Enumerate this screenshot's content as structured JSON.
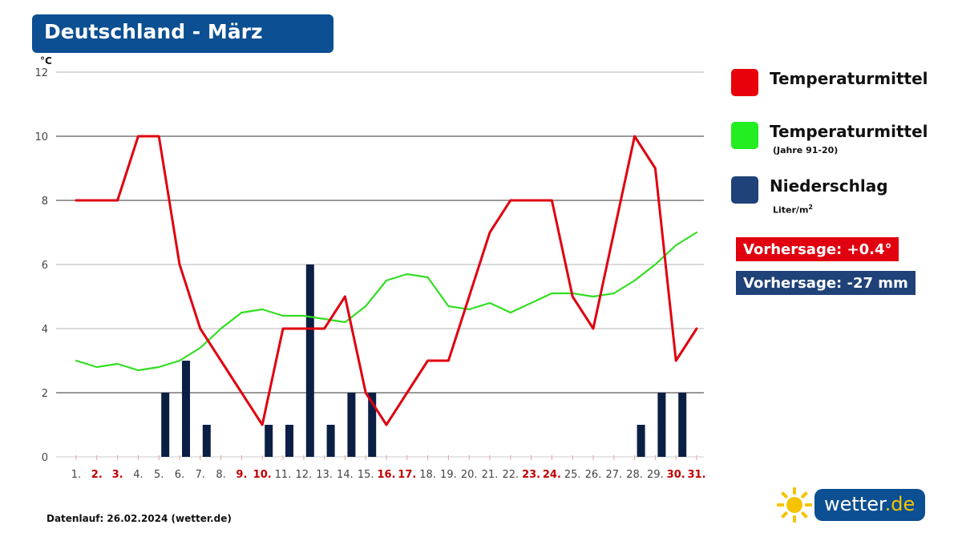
{
  "title": "Deutschland - März",
  "chart_data": {
    "type": "line",
    "yunit": "°C",
    "ylim": [
      0,
      12
    ],
    "yticks": [
      0,
      2,
      4,
      6,
      8,
      10,
      12
    ],
    "grid": true,
    "categories": [
      "1.",
      "2.",
      "3.",
      "4.",
      "5.",
      "6.",
      "7.",
      "8.",
      "9.",
      "10.",
      "11.",
      "12.",
      "13.",
      "14.",
      "15.",
      "16.",
      "17.",
      "18.",
      "19.",
      "20.",
      "21.",
      "22.",
      "23.",
      "24.",
      "25.",
      "26.",
      "27.",
      "28.",
      "29.",
      "30.",
      "31."
    ],
    "weekend_days": [
      2,
      3,
      9,
      10,
      16,
      17,
      23,
      24,
      30,
      31
    ],
    "series": [
      {
        "name": "Temperaturmittel",
        "type": "line",
        "color": "#e0000f",
        "values": [
          8,
          8,
          8,
          10,
          10,
          6,
          4,
          3,
          2,
          1,
          4,
          4,
          4,
          5,
          2,
          1,
          2,
          3,
          3,
          5,
          7,
          8,
          8,
          8,
          5,
          4,
          7,
          10,
          9,
          3,
          4
        ]
      },
      {
        "name": "Temperaturmittel (Jahre 91-20)",
        "type": "line",
        "color": "#33dd22",
        "values": [
          3.0,
          2.8,
          2.9,
          2.7,
          2.8,
          3.0,
          3.4,
          4.0,
          4.5,
          4.6,
          4.4,
          4.4,
          4.3,
          4.2,
          4.7,
          5.5,
          5.7,
          5.6,
          4.7,
          4.6,
          4.8,
          4.5,
          4.8,
          5.1,
          5.1,
          5.0,
          5.1,
          5.5,
          6.0,
          6.6,
          7.0
        ]
      },
      {
        "name": "Niederschlag",
        "type": "bar",
        "color": "#0b1f45",
        "values": [
          0,
          0,
          0,
          0,
          2,
          3,
          1,
          0,
          0,
          1,
          1,
          6,
          1,
          2,
          2,
          0,
          0,
          0,
          0,
          0,
          0,
          0,
          0,
          0,
          0,
          0,
          0,
          1,
          2,
          2,
          0
        ]
      }
    ]
  },
  "legend": [
    {
      "label": "Temperaturmittel",
      "sub": "",
      "color": "#e8000b"
    },
    {
      "label": "Temperaturmittel",
      "sub": "(Jahre 91-20)",
      "color": "#22ee22"
    },
    {
      "label": "Niederschlag",
      "sub": "Liter/m",
      "sub_sup": "2",
      "color": "#1f4278"
    }
  ],
  "badges": [
    {
      "text": "Vorhersage: +0.4°",
      "color": "#e0000f"
    },
    {
      "text": "Vorhersage: -27 mm",
      "color": "#1f4278"
    }
  ],
  "footer": "Datenlauf: 26.02.2024 (wetter.de)",
  "logo": {
    "name": "wetter",
    "tld": ".de"
  },
  "colors": {
    "weekend_label": "#c00000",
    "weekday_label": "#444444"
  }
}
